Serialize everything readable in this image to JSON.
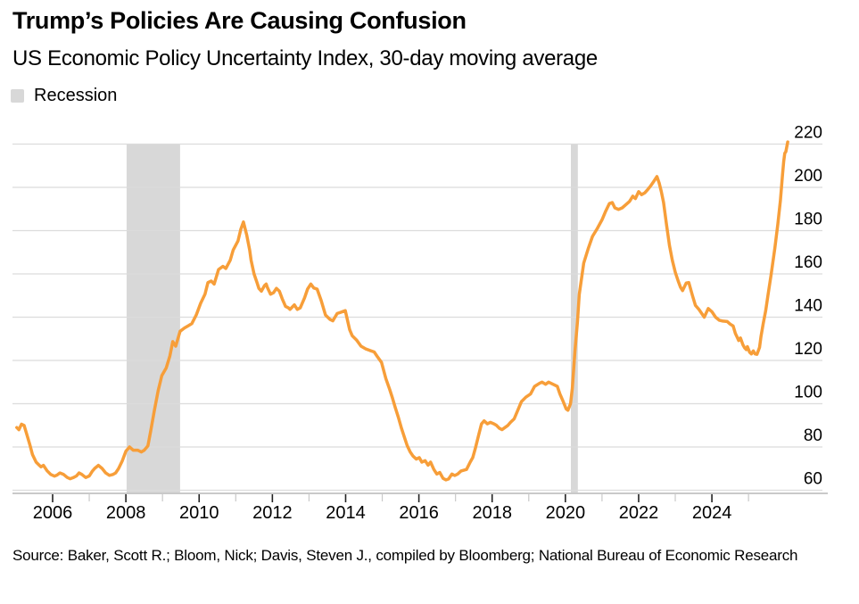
{
  "header": {
    "title": "Trump’s Policies Are Causing Confusion",
    "subtitle": "US Economic Policy Uncertainty Index, 30-day moving average"
  },
  "legend": {
    "recession_label": "Recession",
    "recession_color": "#D8D8D8"
  },
  "source": {
    "text": "Source: Baker, Scott R.; Bloom, Nick; Davis, Steven J., compiled by Bloomberg; National Bureau of Economic Research"
  },
  "colors": {
    "line": "#F79E39",
    "recession_band": "#D8D8D8",
    "gridline": "#DCDCDC",
    "axis_line": "#C9C9C9",
    "major_tick": "#222222",
    "minor_tick": "#C9C9C9",
    "text": "#000000"
  },
  "chart_data": {
    "type": "line",
    "title": "Trump’s Policies Are Causing Confusion",
    "subtitle": "US Economic Policy Uncertainty Index, 30-day moving average",
    "xlabel": "",
    "ylabel": "",
    "grid": "horizontal",
    "legend_position": "top-left",
    "y_axis_side": "right",
    "y_ticks": [
      60,
      80,
      100,
      120,
      140,
      160,
      180,
      200,
      220
    ],
    "ylim": [
      53,
      228
    ],
    "x_major_ticks": [
      2006,
      2008,
      2010,
      2012,
      2014,
      2016,
      2018,
      2020,
      2022,
      2024
    ],
    "x_minor_ticks": [
      2007,
      2009,
      2011,
      2013,
      2015,
      2017,
      2019,
      2021,
      2023,
      2025
    ],
    "xlim": [
      2005,
      2026.2
    ],
    "recession_bands": [
      [
        2008.02,
        2009.48
      ],
      [
        2020.15,
        2020.34
      ]
    ],
    "series": [
      {
        "name": "US Economic Policy Uncertainty Index, 30-day moving average",
        "color": "#F79E39",
        "points": [
          [
            2005.02,
            89
          ],
          [
            2005.08,
            88
          ],
          [
            2005.15,
            90.5
          ],
          [
            2005.22,
            90
          ],
          [
            2005.3,
            85.5
          ],
          [
            2005.38,
            81
          ],
          [
            2005.45,
            76.5
          ],
          [
            2005.55,
            73
          ],
          [
            2005.62,
            71.8
          ],
          [
            2005.68,
            70.8
          ],
          [
            2005.75,
            71.5
          ],
          [
            2005.85,
            69
          ],
          [
            2005.95,
            67.3
          ],
          [
            2006.05,
            66.5
          ],
          [
            2006.12,
            67
          ],
          [
            2006.2,
            68
          ],
          [
            2006.3,
            67.3
          ],
          [
            2006.4,
            65.9
          ],
          [
            2006.48,
            65.3
          ],
          [
            2006.56,
            65.8
          ],
          [
            2006.65,
            66.6
          ],
          [
            2006.72,
            68
          ],
          [
            2006.8,
            67.3
          ],
          [
            2006.9,
            65.9
          ],
          [
            2007.0,
            66.6
          ],
          [
            2007.08,
            68.7
          ],
          [
            2007.15,
            70.1
          ],
          [
            2007.25,
            71.5
          ],
          [
            2007.35,
            70.1
          ],
          [
            2007.45,
            68
          ],
          [
            2007.55,
            66.9
          ],
          [
            2007.65,
            67.3
          ],
          [
            2007.72,
            68
          ],
          [
            2007.8,
            70
          ],
          [
            2007.9,
            73.5
          ],
          [
            2008.0,
            78
          ],
          [
            2008.1,
            80
          ],
          [
            2008.2,
            78.5
          ],
          [
            2008.32,
            78.5
          ],
          [
            2008.42,
            77.7
          ],
          [
            2008.5,
            78.5
          ],
          [
            2008.6,
            80.5
          ],
          [
            2008.68,
            87.5
          ],
          [
            2008.78,
            97
          ],
          [
            2008.88,
            106
          ],
          [
            2008.98,
            113
          ],
          [
            2009.1,
            116.5
          ],
          [
            2009.2,
            122
          ],
          [
            2009.28,
            128.7
          ],
          [
            2009.36,
            126.6
          ],
          [
            2009.48,
            133.5
          ],
          [
            2009.6,
            135
          ],
          [
            2009.7,
            136
          ],
          [
            2009.8,
            137
          ],
          [
            2009.92,
            141
          ],
          [
            2010.04,
            146.4
          ],
          [
            2010.16,
            150.6
          ],
          [
            2010.24,
            156
          ],
          [
            2010.33,
            156.7
          ],
          [
            2010.41,
            155.3
          ],
          [
            2010.53,
            162
          ],
          [
            2010.65,
            163.5
          ],
          [
            2010.73,
            162.5
          ],
          [
            2010.85,
            166.3
          ],
          [
            2010.93,
            171
          ],
          [
            2011.06,
            175.2
          ],
          [
            2011.14,
            180.7
          ],
          [
            2011.21,
            184
          ],
          [
            2011.3,
            178
          ],
          [
            2011.38,
            171
          ],
          [
            2011.42,
            166.3
          ],
          [
            2011.5,
            160
          ],
          [
            2011.58,
            156
          ],
          [
            2011.63,
            153.3
          ],
          [
            2011.7,
            152
          ],
          [
            2011.79,
            154.7
          ],
          [
            2011.83,
            155.3
          ],
          [
            2011.87,
            153.5
          ],
          [
            2011.95,
            150.6
          ],
          [
            2012.03,
            151.3
          ],
          [
            2012.11,
            153.3
          ],
          [
            2012.19,
            152
          ],
          [
            2012.27,
            148.5
          ],
          [
            2012.36,
            145
          ],
          [
            2012.44,
            144.3
          ],
          [
            2012.48,
            143.6
          ],
          [
            2012.56,
            145
          ],
          [
            2012.6,
            145.7
          ],
          [
            2012.68,
            143.6
          ],
          [
            2012.76,
            144.3
          ],
          [
            2012.88,
            149
          ],
          [
            2012.96,
            153
          ],
          [
            2013.05,
            155.3
          ],
          [
            2013.13,
            153.5
          ],
          [
            2013.22,
            153
          ],
          [
            2013.33,
            147.8
          ],
          [
            2013.45,
            141
          ],
          [
            2013.57,
            139
          ],
          [
            2013.65,
            138.3
          ],
          [
            2013.77,
            141.7
          ],
          [
            2013.89,
            142.4
          ],
          [
            2013.99,
            143
          ],
          [
            2014.11,
            134.2
          ],
          [
            2014.18,
            131.4
          ],
          [
            2014.3,
            129.4
          ],
          [
            2014.42,
            126.6
          ],
          [
            2014.55,
            125.3
          ],
          [
            2014.66,
            124.6
          ],
          [
            2014.78,
            123.9
          ],
          [
            2014.86,
            121.9
          ],
          [
            2014.98,
            119.1
          ],
          [
            2015.1,
            111.6
          ],
          [
            2015.2,
            106.7
          ],
          [
            2015.28,
            102.6
          ],
          [
            2015.35,
            98.5
          ],
          [
            2015.44,
            93.7
          ],
          [
            2015.52,
            88.9
          ],
          [
            2015.6,
            84.7
          ],
          [
            2015.68,
            80.6
          ],
          [
            2015.76,
            77.8
          ],
          [
            2015.84,
            75.8
          ],
          [
            2015.93,
            74.4
          ],
          [
            2016.01,
            75.1
          ],
          [
            2016.08,
            73
          ],
          [
            2016.17,
            73.7
          ],
          [
            2016.25,
            71.6
          ],
          [
            2016.32,
            73
          ],
          [
            2016.41,
            69.6
          ],
          [
            2016.49,
            67.5
          ],
          [
            2016.57,
            68.2
          ],
          [
            2016.66,
            65.5
          ],
          [
            2016.74,
            64.8
          ],
          [
            2016.81,
            65.2
          ],
          [
            2016.9,
            67.5
          ],
          [
            2016.98,
            66.8
          ],
          [
            2017.06,
            67.5
          ],
          [
            2017.15,
            68.9
          ],
          [
            2017.3,
            69.6
          ],
          [
            2017.4,
            73
          ],
          [
            2017.47,
            75.1
          ],
          [
            2017.54,
            79.2
          ],
          [
            2017.63,
            85.3
          ],
          [
            2017.71,
            90.7
          ],
          [
            2017.78,
            92.1
          ],
          [
            2017.87,
            90.7
          ],
          [
            2017.95,
            91.4
          ],
          [
            2018.05,
            90.7
          ],
          [
            2018.12,
            90
          ],
          [
            2018.2,
            88.6
          ],
          [
            2018.27,
            88
          ],
          [
            2018.43,
            90
          ],
          [
            2018.5,
            91.4
          ],
          [
            2018.6,
            93
          ],
          [
            2018.7,
            97
          ],
          [
            2018.8,
            101
          ],
          [
            2018.92,
            103
          ],
          [
            2019.05,
            104.5
          ],
          [
            2019.16,
            108
          ],
          [
            2019.29,
            109.4
          ],
          [
            2019.36,
            110
          ],
          [
            2019.46,
            109
          ],
          [
            2019.54,
            110
          ],
          [
            2019.7,
            108.7
          ],
          [
            2019.78,
            108
          ],
          [
            2019.85,
            104.5
          ],
          [
            2019.94,
            101
          ],
          [
            2020.02,
            97.6
          ],
          [
            2020.07,
            97
          ],
          [
            2020.14,
            100
          ],
          [
            2020.19,
            107
          ],
          [
            2020.26,
            124
          ],
          [
            2020.33,
            138
          ],
          [
            2020.38,
            150.5
          ],
          [
            2020.5,
            165
          ],
          [
            2020.62,
            171.5
          ],
          [
            2020.74,
            177.3
          ],
          [
            2020.87,
            181
          ],
          [
            2021.0,
            185
          ],
          [
            2021.1,
            189
          ],
          [
            2021.2,
            192.5
          ],
          [
            2021.28,
            193
          ],
          [
            2021.35,
            190.5
          ],
          [
            2021.45,
            189.8
          ],
          [
            2021.55,
            190.5
          ],
          [
            2021.65,
            192
          ],
          [
            2021.75,
            193.5
          ],
          [
            2021.84,
            195.9
          ],
          [
            2021.91,
            194.8
          ],
          [
            2022.0,
            198
          ],
          [
            2022.08,
            196.6
          ],
          [
            2022.17,
            197.5
          ],
          [
            2022.25,
            199
          ],
          [
            2022.33,
            200.7
          ],
          [
            2022.41,
            202.7
          ],
          [
            2022.5,
            205
          ],
          [
            2022.56,
            202
          ],
          [
            2022.62,
            198
          ],
          [
            2022.68,
            193
          ],
          [
            2022.76,
            182.8
          ],
          [
            2022.84,
            173.2
          ],
          [
            2022.92,
            166.3
          ],
          [
            2023.0,
            160.8
          ],
          [
            2023.08,
            156.7
          ],
          [
            2023.14,
            153.9
          ],
          [
            2023.2,
            152.3
          ],
          [
            2023.3,
            155.8
          ],
          [
            2023.37,
            156
          ],
          [
            2023.47,
            150
          ],
          [
            2023.55,
            145.5
          ],
          [
            2023.65,
            143.5
          ],
          [
            2023.79,
            140
          ],
          [
            2023.9,
            144
          ],
          [
            2024.0,
            142.5
          ],
          [
            2024.1,
            140
          ],
          [
            2024.2,
            138.6
          ],
          [
            2024.3,
            138.2
          ],
          [
            2024.42,
            138
          ],
          [
            2024.5,
            136.8
          ],
          [
            2024.58,
            135.9
          ],
          [
            2024.64,
            132.5
          ],
          [
            2024.7,
            130.4
          ],
          [
            2024.73,
            129.2
          ],
          [
            2024.78,
            130.4
          ],
          [
            2024.85,
            127.1
          ],
          [
            2024.9,
            125.7
          ],
          [
            2024.94,
            125
          ],
          [
            2024.97,
            126.4
          ],
          [
            2025.03,
            123.8
          ],
          [
            2025.08,
            123
          ],
          [
            2025.13,
            124.4
          ],
          [
            2025.18,
            123
          ],
          [
            2025.23,
            122.8
          ],
          [
            2025.3,
            126
          ],
          [
            2025.34,
            131
          ],
          [
            2025.4,
            137
          ],
          [
            2025.47,
            143
          ],
          [
            2025.53,
            150
          ],
          [
            2025.62,
            160
          ],
          [
            2025.72,
            172
          ],
          [
            2025.8,
            183
          ],
          [
            2025.87,
            194
          ],
          [
            2025.93,
            206
          ],
          [
            2025.96,
            212
          ],
          [
            2025.99,
            215.8
          ],
          [
            2026.02,
            216.5
          ],
          [
            2026.07,
            221
          ]
        ]
      }
    ]
  }
}
